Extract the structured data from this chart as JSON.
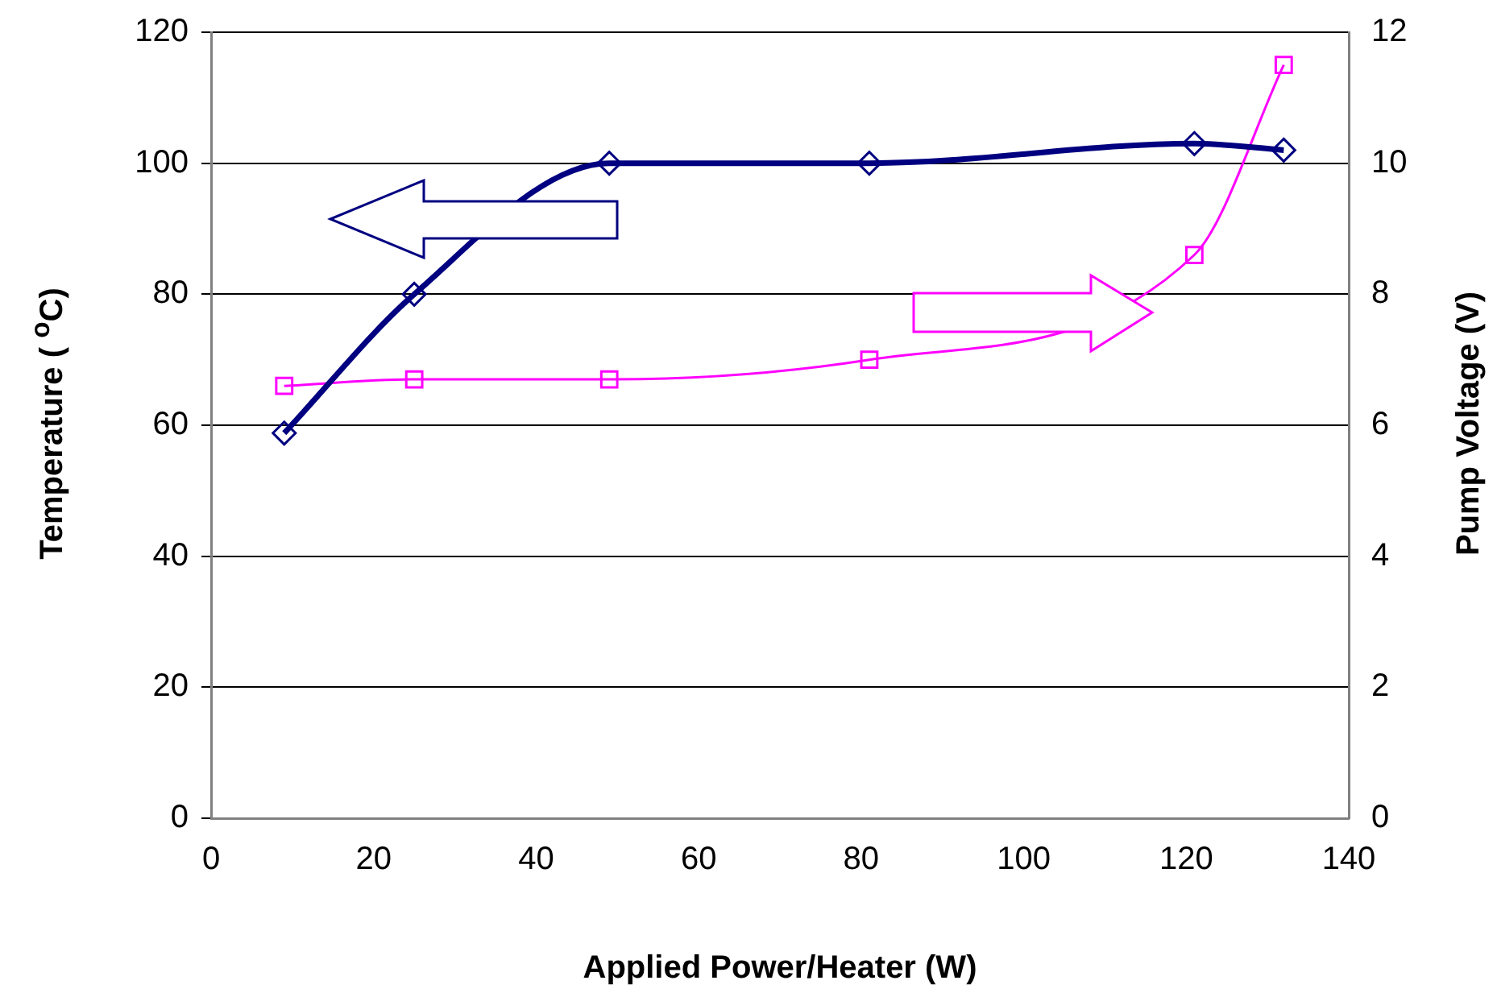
{
  "chart_data": {
    "type": "line",
    "xlabel": "Applied Power/Heater (W)",
    "ylabel": "Temperature ( $^{o}$C)",
    "y2label": "Pump Voltage (V)",
    "xlim": [
      0,
      140
    ],
    "xticks": [
      0,
      20,
      40,
      60,
      80,
      100,
      120,
      140
    ],
    "ylim": [
      0,
      120
    ],
    "yticks": [
      0,
      20,
      40,
      60,
      80,
      100,
      120
    ],
    "y2lim": [
      0,
      12
    ],
    "y2ticks": [
      0,
      2,
      4,
      6,
      8,
      10,
      12
    ],
    "grid": "y",
    "legend": false,
    "line_style": "solid",
    "series": [
      {
        "color": "#000080",
        "marker": "diamond",
        "x": [
          9,
          25,
          49,
          81,
          121,
          132
        ],
        "values": [
          58.8,
          80,
          100,
          100,
          103,
          102
        ]
      },
      {
        "color": "#ff00ff",
        "marker": "square",
        "axis": "y2",
        "x": [
          9,
          25,
          49,
          81,
          121,
          132
        ],
        "values": [
          6.6,
          6.7,
          6.7,
          7.0,
          8.6,
          11.5
        ]
      }
    ]
  }
}
